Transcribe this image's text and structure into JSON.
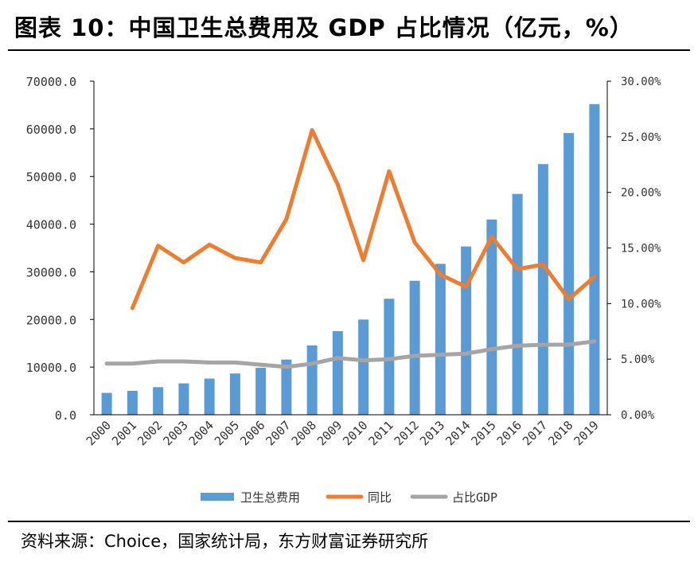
{
  "header": {
    "title": "图表 10：中国卫生总费用及 GDP 占比情况（亿元，%）"
  },
  "footer": {
    "source": "资料来源：Choice，国家统计局，东方财富证券研究所"
  },
  "colors": {
    "bar": "#5B9BD5",
    "yoy": "#ED7D31",
    "gdp_share": "#A5A5A5"
  },
  "chart_data": {
    "type": "bar+line",
    "title": "",
    "categories": [
      "2000",
      "2001",
      "2002",
      "2003",
      "2004",
      "2005",
      "2006",
      "2007",
      "2008",
      "2009",
      "2010",
      "2011",
      "2012",
      "2013",
      "2014",
      "2015",
      "2016",
      "2017",
      "2018",
      "2019"
    ],
    "series": [
      {
        "name": "卫生总费用",
        "type": "bar",
        "axis": "left",
        "values": [
          4587,
          5026,
          5790,
          6584,
          7590,
          8660,
          9843,
          11574,
          14535,
          17542,
          19980,
          24346,
          28119,
          31669,
          35312,
          40975,
          46345,
          52598,
          59122,
          65196
        ]
      },
      {
        "name": "同比",
        "type": "line",
        "axis": "right",
        "values": [
          null,
          9.6,
          15.2,
          13.7,
          15.3,
          14.1,
          13.7,
          17.6,
          25.6,
          20.7,
          13.9,
          21.9,
          15.5,
          12.6,
          11.5,
          16.0,
          13.1,
          13.5,
          10.4,
          12.4
        ]
      },
      {
        "name": "占比GDP",
        "type": "line",
        "axis": "right",
        "values": [
          4.6,
          4.6,
          4.8,
          4.8,
          4.7,
          4.7,
          4.5,
          4.3,
          4.6,
          5.1,
          4.9,
          5.0,
          5.3,
          5.4,
          5.5,
          5.9,
          6.2,
          6.3,
          6.3,
          6.6
        ]
      }
    ],
    "left_axis": {
      "min": 0,
      "max": 70000,
      "ticks": [
        "0.0",
        "10000.0",
        "20000.0",
        "30000.0",
        "40000.0",
        "50000.0",
        "60000.0",
        "70000.0"
      ]
    },
    "right_axis": {
      "min": 0,
      "max": 30,
      "ticks": [
        "0.00%",
        "5.00%",
        "10.00%",
        "15.00%",
        "20.00%",
        "25.00%",
        "30.00%"
      ]
    },
    "legend": {
      "position": "bottom",
      "entries": [
        "卫生总费用",
        "同比",
        "占比GDP"
      ]
    },
    "grid": false
  }
}
